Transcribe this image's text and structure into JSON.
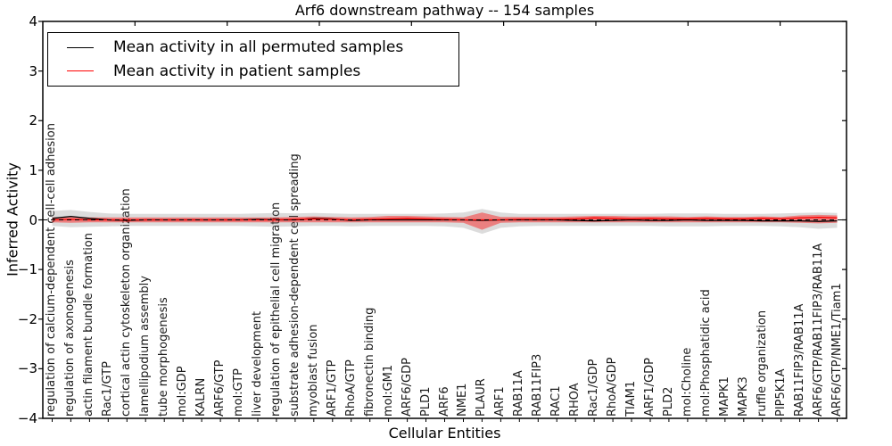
{
  "chart_data": {
    "type": "line",
    "title": "Arf6 downstream pathway -- 154 samples",
    "xlabel": "Cellular Entities",
    "ylabel": "Inferred Activity",
    "ylim": [
      -4,
      4
    ],
    "yticks": [
      "4",
      "3",
      "2",
      "1",
      "0",
      "−1",
      "−2",
      "−3",
      "−4"
    ],
    "grid": false,
    "legend_position": "upper left",
    "categories": [
      "regulation of calcium-dependent cell-cell adhesion",
      "regulation of axonogenesis",
      "actin filament bundle formation",
      "Rac1/GTP",
      "cortical actin cytoskeleton organization",
      "lamellipodium assembly",
      "tube morphogenesis",
      "mol:GDP",
      "KALRN",
      "ARF6/GTP",
      "mol:GTP",
      "liver development",
      "regulation of epithelial cell migration",
      "substrate adhesion-dependent cell spreading",
      "myoblast fusion",
      "ARF1/GTP",
      "RhoA/GTP",
      "fibronectin binding",
      "mol:GM1",
      "ARF6/GDP",
      "PLD1",
      "ARF6",
      "NME1",
      "PLAUR",
      "ARF1",
      "RAB11A",
      "RAB11FIP3",
      "RAC1",
      "RHOA",
      "Rac1/GDP",
      "RhoA/GDP",
      "TIAM1",
      "ARF1/GDP",
      "PLD2",
      "mol:Choline",
      "mol:Phosphatidic acid",
      "MAPK1",
      "MAPK3",
      "ruffle organization",
      "PIP5K1A",
      "RAB11FIP3/RAB11A",
      "ARF6/GTP/RAB11FIP3/RAB11A",
      "ARF6/GTP/NME1/Tiam1"
    ],
    "series": [
      {
        "id": "permuted",
        "name": "Mean activity in all permuted samples",
        "color": "#000000",
        "values": [
          0.03,
          0.07,
          0.03,
          0.0,
          -0.01,
          0.0,
          0.0,
          0.0,
          0.0,
          0.0,
          0.0,
          0.01,
          0.0,
          0.0,
          0.03,
          0.02,
          -0.01,
          0.0,
          0.0,
          0.0,
          0.0,
          0.0,
          0.0,
          -0.01,
          0.0,
          0.0,
          0.0,
          0.0,
          -0.01,
          -0.02,
          -0.01,
          0.0,
          -0.01,
          -0.01,
          0.0,
          -0.01,
          -0.01,
          -0.01,
          -0.02,
          -0.02,
          -0.02,
          -0.03,
          -0.02
        ]
      },
      {
        "id": "patient",
        "name": "Mean activity in patient samples",
        "color": "#ff0000",
        "values": [
          0.0,
          0.01,
          0.0,
          0.0,
          0.0,
          0.0,
          0.0,
          0.0,
          0.0,
          0.0,
          0.0,
          0.0,
          0.0,
          0.01,
          0.02,
          0.01,
          0.0,
          0.01,
          0.02,
          0.03,
          0.02,
          0.01,
          0.0,
          0.0,
          0.0,
          0.01,
          0.01,
          0.01,
          0.02,
          0.04,
          0.03,
          0.02,
          0.03,
          0.02,
          0.02,
          0.03,
          0.02,
          0.02,
          0.03,
          0.02,
          0.04,
          0.05,
          0.04
        ]
      }
    ],
    "bands": [
      {
        "name": "permuted-band",
        "color": "rgba(128,128,128,0.28)",
        "upper": [
          0.18,
          0.2,
          0.16,
          0.13,
          0.12,
          0.12,
          0.12,
          0.12,
          0.12,
          0.12,
          0.12,
          0.13,
          0.14,
          0.13,
          0.14,
          0.13,
          0.12,
          0.12,
          0.12,
          0.12,
          0.12,
          0.13,
          0.15,
          0.22,
          0.15,
          0.12,
          0.12,
          0.12,
          0.12,
          0.12,
          0.12,
          0.12,
          0.12,
          0.13,
          0.13,
          0.13,
          0.12,
          0.12,
          0.12,
          0.13,
          0.14,
          0.15,
          0.14
        ],
        "lower": [
          -0.12,
          -0.15,
          -0.14,
          -0.13,
          -0.12,
          -0.12,
          -0.12,
          -0.12,
          -0.12,
          -0.12,
          -0.12,
          -0.13,
          -0.14,
          -0.13,
          -0.12,
          -0.12,
          -0.13,
          -0.12,
          -0.12,
          -0.12,
          -0.12,
          -0.13,
          -0.16,
          -0.28,
          -0.16,
          -0.13,
          -0.12,
          -0.12,
          -0.12,
          -0.12,
          -0.12,
          -0.12,
          -0.12,
          -0.13,
          -0.13,
          -0.13,
          -0.12,
          -0.12,
          -0.12,
          -0.13,
          -0.15,
          -0.18,
          -0.16
        ]
      },
      {
        "name": "patient-band",
        "color": "rgba(255,0,0,0.42)",
        "upper": [
          0.05,
          0.06,
          0.05,
          0.05,
          0.05,
          0.05,
          0.05,
          0.05,
          0.05,
          0.05,
          0.05,
          0.05,
          0.05,
          0.06,
          0.07,
          0.06,
          0.05,
          0.06,
          0.08,
          0.08,
          0.07,
          0.06,
          0.05,
          0.15,
          0.06,
          0.06,
          0.06,
          0.06,
          0.07,
          0.08,
          0.08,
          0.07,
          0.07,
          0.07,
          0.06,
          0.07,
          0.06,
          0.06,
          0.07,
          0.06,
          0.09,
          0.1,
          0.09
        ],
        "lower": [
          -0.05,
          -0.06,
          -0.05,
          -0.05,
          -0.05,
          -0.05,
          -0.05,
          -0.05,
          -0.05,
          -0.05,
          -0.05,
          -0.05,
          -0.05,
          -0.05,
          -0.05,
          -0.05,
          -0.05,
          -0.05,
          -0.05,
          -0.05,
          -0.05,
          -0.05,
          -0.06,
          -0.2,
          -0.06,
          -0.05,
          -0.05,
          -0.05,
          -0.05,
          -0.05,
          -0.05,
          -0.05,
          -0.05,
          -0.05,
          -0.05,
          -0.05,
          -0.05,
          -0.05,
          -0.05,
          -0.05,
          -0.06,
          -0.07,
          -0.06
        ]
      }
    ],
    "zero_line": 0,
    "colors": {
      "axis": "#000000",
      "permuted_line": "#000000",
      "patient_line": "#ff0000",
      "permuted_band": "rgba(128,128,128,0.28)",
      "patient_band": "rgba(255,0,0,0.42)"
    }
  }
}
